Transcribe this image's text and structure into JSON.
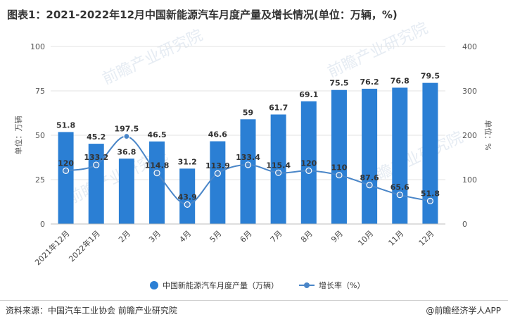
{
  "title": "图表1：2021-2022年12月中国新能源汽车月度产量及增长情况(单位：万辆，%)",
  "source": "资料来源：中国汽车工业协会 前瞻产业研究院",
  "app_credit": "@前瞻经济学人APP",
  "watermark": "前瞻产业研究院",
  "colors": {
    "bar": "#2b7fd4",
    "line": "#4a86c8",
    "grid": "#e3e3e3"
  },
  "chart_data": {
    "type": "bar",
    "categories": [
      "2021年12月",
      "2022年1月",
      "2月",
      "3月",
      "4月",
      "5月",
      "6月",
      "7月",
      "8月",
      "9月",
      "10月",
      "11月",
      "12月"
    ],
    "series": [
      {
        "name": "中国新能源汽车月度产量（万辆）",
        "type": "bar",
        "axis": "left",
        "values": [
          51.8,
          45.2,
          36.8,
          46.5,
          31.2,
          46.6,
          59,
          61.7,
          69.1,
          75.5,
          76.2,
          76.8,
          79.5
        ]
      },
      {
        "name": "增长率（%）",
        "type": "line",
        "axis": "right",
        "values": [
          120,
          133.2,
          197.5,
          114.8,
          43.9,
          113.9,
          133.4,
          115.4,
          120,
          110,
          87.6,
          65.6,
          51.8
        ]
      }
    ],
    "y_left": {
      "label": "单位：万辆",
      "range": [
        0,
        100
      ],
      "ticks": [
        0,
        25,
        50,
        75,
        100
      ]
    },
    "y_right": {
      "label": "单位：%",
      "range": [
        0,
        400
      ],
      "ticks": [
        0,
        100,
        200,
        300,
        400
      ]
    },
    "grid": true,
    "legend": "bottom-center"
  }
}
